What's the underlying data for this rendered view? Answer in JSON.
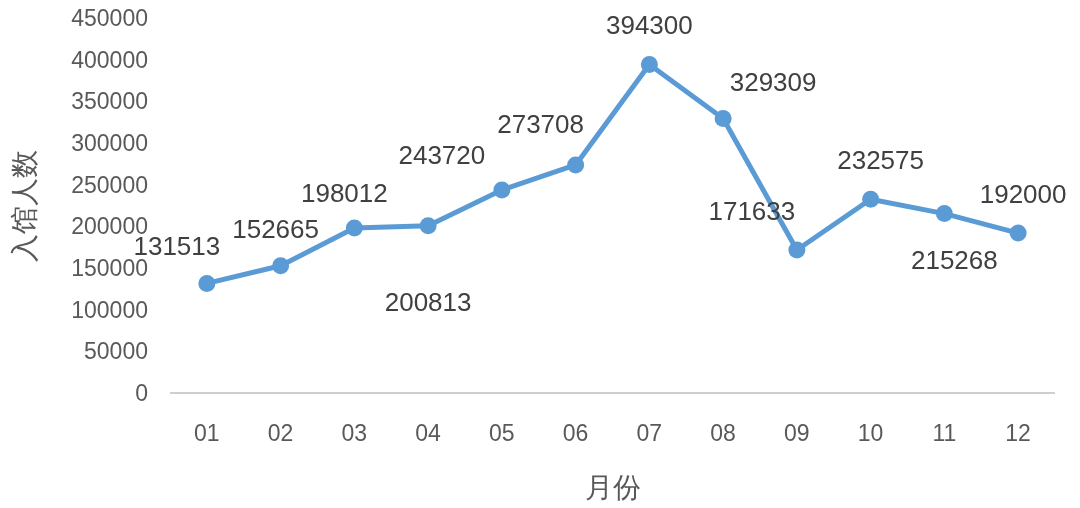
{
  "chart_data": {
    "type": "line",
    "xlabel": "月份",
    "ylabel": "入馆人数",
    "categories": [
      "01",
      "02",
      "03",
      "04",
      "05",
      "06",
      "07",
      "08",
      "09",
      "10",
      "11",
      "12"
    ],
    "series": [
      {
        "color": "#5b9bd5",
        "values": [
          131513,
          152665,
          198012,
          200813,
          243720,
          273708,
          394300,
          329309,
          171633,
          232575,
          215268,
          192000
        ]
      }
    ],
    "ylim": [
      0,
      450000
    ],
    "yticks": [
      0,
      50000,
      100000,
      150000,
      200000,
      250000,
      300000,
      350000,
      400000,
      450000
    ],
    "grid": false,
    "marker": "circle",
    "line_style": "solid",
    "data_labels": true
  }
}
